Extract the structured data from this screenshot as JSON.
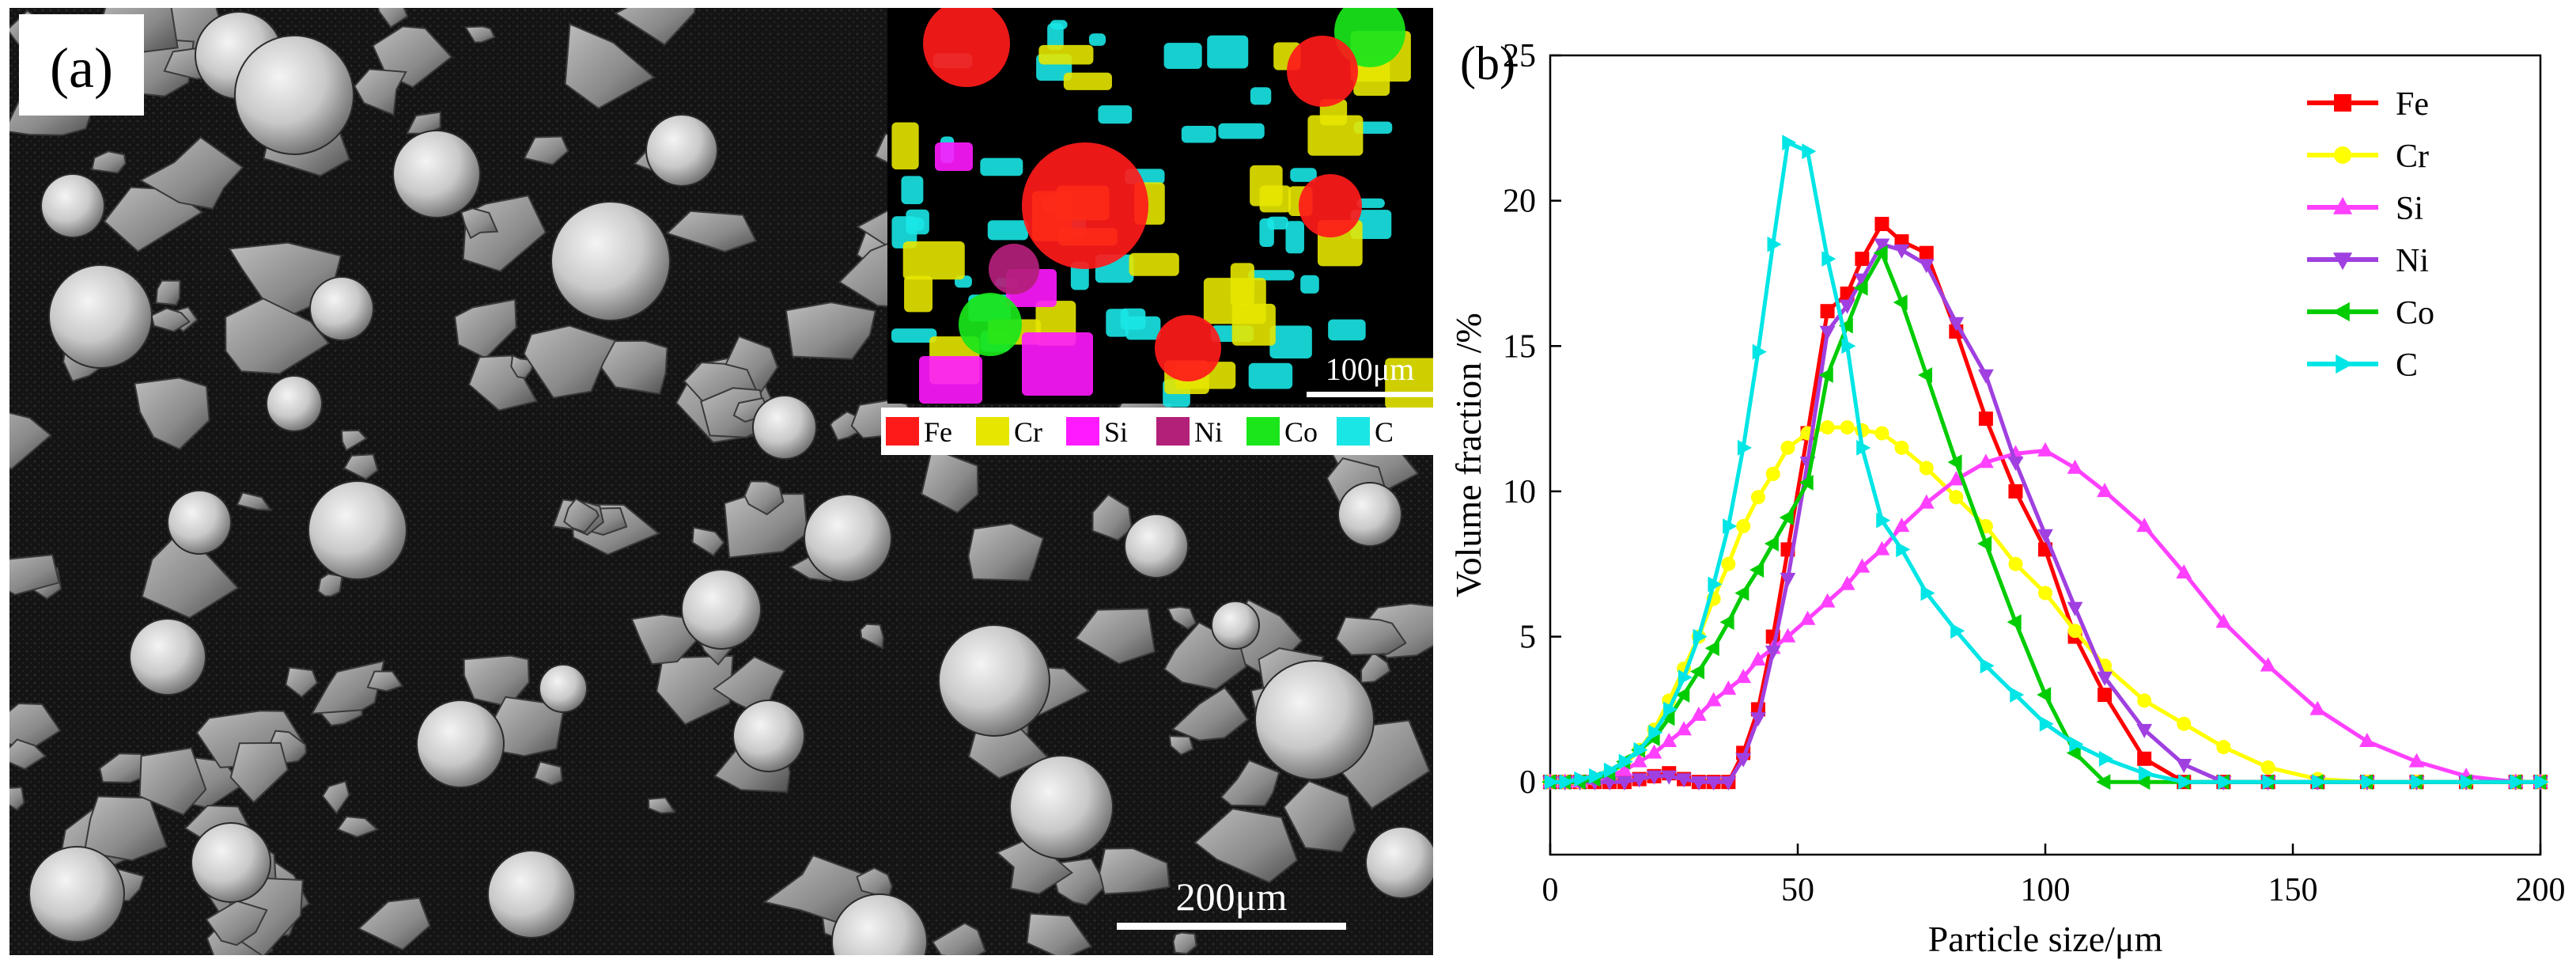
{
  "panel_a": {
    "label": "(a)",
    "main_scale_bar": "200μm",
    "inset_scale_bar": "100μm",
    "map_legend": [
      {
        "label": "Fe",
        "color": "#ff1a1a"
      },
      {
        "label": "Cr",
        "color": "#e6e600"
      },
      {
        "label": "Si",
        "color": "#ff1aff"
      },
      {
        "label": "Ni",
        "color": "#b3207a"
      },
      {
        "label": "Co",
        "color": "#1ae61a"
      },
      {
        "label": "C",
        "color": "#1ae6e6"
      }
    ]
  },
  "chart_data": {
    "type": "line",
    "panel_label": "(b)",
    "title": "",
    "xlabel": "Particle size/μm",
    "ylabel": "Volume fraction /%",
    "xlim": [
      0,
      200
    ],
    "ylim": [
      -2.5,
      25
    ],
    "xticks": [
      0,
      50,
      100,
      150,
      200
    ],
    "yticks": [
      0,
      5,
      10,
      15,
      20,
      25
    ],
    "grid": false,
    "legend_position": "top-right",
    "series": [
      {
        "name": "Fe",
        "color": "#ff0000",
        "marker": "square",
        "x": [
          0,
          3,
          6,
          9,
          12,
          15,
          18,
          21,
          24,
          27,
          30,
          33,
          36,
          39,
          42,
          45,
          48,
          52,
          56,
          60,
          63,
          67,
          71,
          76,
          82,
          88,
          94,
          100,
          106,
          112,
          120,
          128,
          136,
          145,
          155,
          165,
          175,
          185,
          195,
          200
        ],
        "y": [
          0,
          0,
          0,
          0,
          0,
          0,
          0.1,
          0.2,
          0.3,
          0.1,
          0,
          0,
          0,
          1,
          2.5,
          5,
          8,
          12,
          16.2,
          16.8,
          18,
          19.2,
          18.6,
          18.2,
          15.5,
          12.5,
          10,
          8,
          5,
          3,
          0.8,
          0,
          0,
          0,
          0,
          0,
          0,
          0,
          0,
          0
        ]
      },
      {
        "name": "Cr",
        "color": "#ffff00",
        "marker": "circle",
        "x": [
          0,
          3,
          6,
          9,
          12,
          15,
          18,
          21,
          24,
          27,
          30,
          33,
          36,
          39,
          42,
          45,
          48,
          52,
          56,
          60,
          63,
          67,
          71,
          76,
          82,
          88,
          94,
          100,
          106,
          112,
          120,
          128,
          136,
          145,
          155,
          165,
          175,
          185,
          195,
          200
        ],
        "y": [
          0,
          0,
          0,
          0.1,
          0.3,
          0.6,
          1.1,
          1.8,
          2.8,
          3.9,
          5,
          6.3,
          7.5,
          8.8,
          9.8,
          10.6,
          11.5,
          12,
          12.2,
          12.2,
          12.1,
          12,
          11.5,
          10.8,
          9.8,
          8.8,
          7.5,
          6.5,
          5.2,
          4,
          2.8,
          2,
          1.2,
          0.5,
          0.1,
          0,
          0,
          0,
          0,
          0
        ]
      },
      {
        "name": "Si",
        "color": "#ff40ff",
        "marker": "triangle-up",
        "x": [
          0,
          3,
          6,
          9,
          12,
          15,
          18,
          21,
          24,
          27,
          30,
          33,
          36,
          39,
          42,
          45,
          48,
          52,
          56,
          60,
          63,
          67,
          71,
          76,
          82,
          88,
          94,
          100,
          106,
          112,
          120,
          128,
          136,
          145,
          155,
          165,
          175,
          185,
          195,
          200
        ],
        "y": [
          0,
          0,
          0,
          0.1,
          0.2,
          0.4,
          0.7,
          1,
          1.4,
          1.8,
          2.3,
          2.8,
          3.2,
          3.6,
          4.2,
          4.6,
          5,
          5.6,
          6.2,
          6.8,
          7.4,
          8,
          8.8,
          9.6,
          10.4,
          11,
          11.3,
          11.4,
          10.8,
          10,
          8.8,
          7.2,
          5.5,
          4,
          2.5,
          1.4,
          0.7,
          0.2,
          0,
          0
        ]
      },
      {
        "name": "Ni",
        "color": "#a040e0",
        "marker": "triangle-down",
        "x": [
          0,
          3,
          6,
          9,
          12,
          15,
          18,
          21,
          24,
          27,
          30,
          33,
          36,
          39,
          42,
          45,
          48,
          52,
          56,
          60,
          63,
          67,
          71,
          76,
          82,
          88,
          94,
          100,
          106,
          112,
          120,
          128,
          136,
          145,
          155,
          165,
          175,
          185,
          195,
          200
        ],
        "y": [
          0,
          0,
          0,
          0,
          0,
          0,
          0.1,
          0.2,
          0.2,
          0.1,
          0,
          0,
          0,
          0.8,
          2.2,
          4.5,
          7,
          11,
          15.5,
          16.4,
          17.3,
          18.5,
          18.3,
          17.8,
          15.8,
          14,
          11,
          8.5,
          6,
          3.6,
          1.8,
          0.6,
          0,
          0,
          0,
          0,
          0,
          0,
          0,
          0
        ]
      },
      {
        "name": "Co",
        "color": "#00cc00",
        "marker": "triangle-left",
        "x": [
          0,
          3,
          6,
          9,
          12,
          15,
          18,
          21,
          24,
          27,
          30,
          33,
          36,
          39,
          42,
          45,
          48,
          52,
          56,
          60,
          63,
          67,
          71,
          76,
          82,
          88,
          94,
          100,
          106,
          112,
          120,
          128,
          136,
          145,
          155,
          165,
          175,
          185,
          195,
          200
        ],
        "y": [
          0,
          0,
          0,
          0.1,
          0.3,
          0.7,
          1.1,
          1.5,
          2.2,
          3,
          3.8,
          4.6,
          5.5,
          6.5,
          7.3,
          8.2,
          9.1,
          10.3,
          14,
          15.7,
          17,
          18.2,
          16.5,
          14,
          11,
          8.2,
          5.5,
          3,
          1,
          0,
          0,
          0,
          0,
          0,
          0,
          0,
          0,
          0,
          0,
          0
        ]
      },
      {
        "name": "C",
        "color": "#00e5e5",
        "marker": "triangle-right",
        "x": [
          0,
          3,
          6,
          9,
          12,
          15,
          18,
          21,
          24,
          27,
          30,
          33,
          36,
          39,
          42,
          45,
          48,
          52,
          56,
          60,
          63,
          67,
          71,
          76,
          82,
          88,
          94,
          100,
          106,
          112,
          120,
          128,
          136,
          145,
          155,
          165,
          175,
          185,
          195,
          200
        ],
        "y": [
          0,
          0,
          0.1,
          0.2,
          0.4,
          0.7,
          1.1,
          1.7,
          2.5,
          3.6,
          5,
          6.8,
          8.8,
          11.5,
          14.8,
          18.5,
          22,
          21.7,
          18,
          15,
          11.5,
          9,
          8,
          6.5,
          5.2,
          4,
          3,
          2,
          1.3,
          0.8,
          0.3,
          0,
          0,
          0,
          0,
          0,
          0,
          0,
          0,
          0
        ]
      }
    ]
  }
}
